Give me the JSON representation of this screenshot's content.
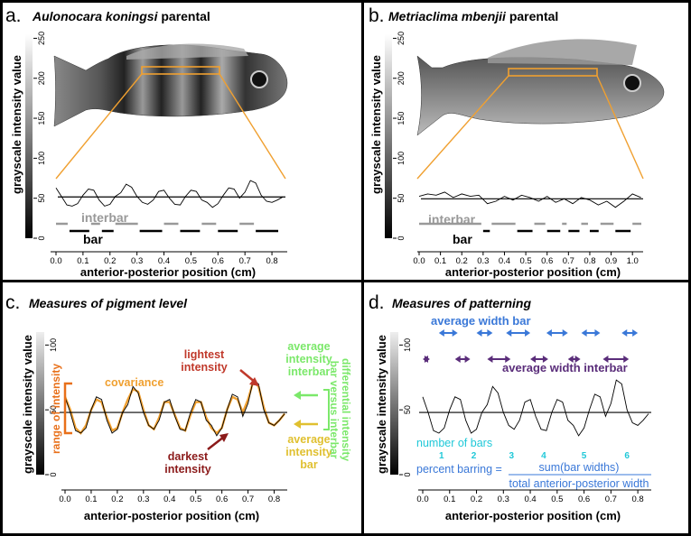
{
  "colors": {
    "orange": "#f0a030",
    "red": "#c0392b",
    "darkred": "#8b1a1a",
    "green": "#7be86a",
    "yellow": "#e0c030",
    "cyan": "#20c8d8",
    "blue": "#3a78d8",
    "purple": "#5a2d7a",
    "gray": "#999999",
    "black": "#000000"
  },
  "panels": {
    "a": {
      "letter": "a.",
      "title_italic": "Aulonocara koningsi",
      "title_rest": " parental",
      "ylabel": "grayscale intensity value",
      "xlabel": "anterior-posterior position (cm)",
      "yticks": [
        "0",
        "50",
        "100",
        "150",
        "200",
        "250"
      ],
      "xticks": [
        "0.0",
        "0.1",
        "0.2",
        "0.3",
        "0.4",
        "0.5",
        "0.6",
        "0.7",
        "0.8"
      ],
      "label_interbar": "interbar",
      "label_bar": "bar"
    },
    "b": {
      "letter": "b.",
      "title_italic": "Metriaclima mbenjii",
      "title_rest": " parental",
      "ylabel": "grayscale intensity value",
      "xlabel": "anterior-posterior position (cm)",
      "yticks": [
        "0",
        "50",
        "100",
        "150",
        "200",
        "250"
      ],
      "xticks": [
        "0.0",
        "0.1",
        "0.2",
        "0.3",
        "0.4",
        "0.5",
        "0.6",
        "0.7",
        "0.8",
        "0.9",
        "1.0"
      ],
      "label_interbar": "interbar",
      "label_bar": "bar"
    },
    "c": {
      "letter": "c.",
      "title": "Measures of pigment level",
      "ylabel": "grayscale intensity value",
      "xlabel": "anterior-posterior position (cm)",
      "yticks": [
        "0",
        "50",
        "100"
      ],
      "xticks": [
        "0.0",
        "0.1",
        "0.2",
        "0.3",
        "0.4",
        "0.5",
        "0.6",
        "0.7",
        "0.8"
      ],
      "range_label": "range of intensity",
      "covariance": "covariance",
      "lightest": [
        "lightest",
        "intensity"
      ],
      "darkest": [
        "darkest",
        "intensity"
      ],
      "avg_interbar": [
        "average",
        "intensity",
        "interbar"
      ],
      "avg_bar": [
        "average",
        "intensity",
        "bar"
      ],
      "differential": [
        "differential intensity",
        "bar versus interbar"
      ]
    },
    "d": {
      "letter": "d.",
      "title": "Measures of patterning",
      "ylabel": "grayscale intensity value",
      "xlabel": "anterior-posterior position (cm)",
      "yticks": [
        "0",
        "50",
        "100"
      ],
      "xticks": [
        "0.0",
        "0.1",
        "0.2",
        "0.3",
        "0.4",
        "0.5",
        "0.6",
        "0.7",
        "0.8"
      ],
      "avg_width_bar": "average width bar",
      "avg_width_interbar": "average width interbar",
      "number_of_bars": "number of bars",
      "bar_numbers": [
        "1",
        "2",
        "3",
        "4",
        "5",
        "6"
      ],
      "percent_barring": "percent barring =",
      "numerator": "sum(bar widths)",
      "denominator": "total anterior-posterior width"
    }
  },
  "chart_data": [
    {
      "type": "line",
      "panel": "a",
      "ylim": [
        0,
        255
      ],
      "xlim": [
        0,
        0.85
      ],
      "mean_intensity": 47,
      "x": [
        0.0,
        0.02,
        0.04,
        0.06,
        0.08,
        0.1,
        0.12,
        0.14,
        0.16,
        0.18,
        0.2,
        0.22,
        0.24,
        0.26,
        0.28,
        0.3,
        0.32,
        0.34,
        0.36,
        0.38,
        0.4,
        0.42,
        0.44,
        0.46,
        0.48,
        0.5,
        0.52,
        0.54,
        0.56,
        0.58,
        0.6,
        0.62,
        0.64,
        0.66,
        0.68,
        0.7,
        0.72,
        0.74,
        0.76,
        0.78,
        0.8,
        0.82,
        0.84
      ],
      "y": [
        62,
        48,
        34,
        32,
        36,
        50,
        60,
        58,
        42,
        32,
        35,
        48,
        54,
        68,
        63,
        48,
        38,
        35,
        42,
        56,
        58,
        45,
        35,
        34,
        48,
        58,
        56,
        42,
        38,
        30,
        36,
        50,
        62,
        60,
        45,
        55,
        74,
        70,
        50,
        40,
        38,
        42,
        47
      ],
      "bars": [
        [
          0.05,
          0.13
        ],
        [
          0.17,
          0.22
        ],
        [
          0.31,
          0.4
        ],
        [
          0.46,
          0.54
        ],
        [
          0.6,
          0.68
        ],
        [
          0.74,
          0.83
        ]
      ],
      "interbars": [
        [
          0.0,
          0.05
        ],
        [
          0.13,
          0.17
        ],
        [
          0.22,
          0.31
        ],
        [
          0.4,
          0.46
        ],
        [
          0.54,
          0.6
        ],
        [
          0.68,
          0.74
        ]
      ]
    },
    {
      "type": "line",
      "panel": "b",
      "ylim": [
        0,
        255
      ],
      "xlim": [
        0,
        1.05
      ],
      "mean_intensity": 44,
      "x": [
        0.0,
        0.04,
        0.08,
        0.12,
        0.16,
        0.2,
        0.24,
        0.28,
        0.32,
        0.36,
        0.4,
        0.44,
        0.48,
        0.52,
        0.56,
        0.6,
        0.64,
        0.68,
        0.72,
        0.76,
        0.8,
        0.84,
        0.88,
        0.92,
        0.96,
        1.0,
        1.04
      ],
      "y": [
        48,
        52,
        50,
        55,
        46,
        52,
        48,
        50,
        36,
        40,
        48,
        42,
        50,
        46,
        40,
        48,
        38,
        44,
        36,
        46,
        42,
        34,
        40,
        30,
        40,
        52,
        46
      ],
      "bars": [
        [
          0.3,
          0.34
        ],
        [
          0.46,
          0.54
        ],
        [
          0.6,
          0.67
        ],
        [
          0.7,
          0.76
        ],
        [
          0.8,
          0.85
        ],
        [
          0.92,
          1.0
        ]
      ],
      "interbars": [
        [
          0.0,
          0.3
        ],
        [
          0.34,
          0.46
        ],
        [
          0.54,
          0.6
        ],
        [
          0.67,
          0.7
        ],
        [
          0.76,
          0.8
        ],
        [
          0.85,
          0.92
        ],
        [
          1.0,
          1.05
        ]
      ]
    },
    {
      "type": "line",
      "panel": "c",
      "ylim": [
        0,
        110
      ],
      "xlim": [
        0,
        0.85
      ],
      "mean_intensity": 48,
      "x": [
        0.0,
        0.02,
        0.04,
        0.06,
        0.08,
        0.1,
        0.12,
        0.14,
        0.16,
        0.18,
        0.2,
        0.22,
        0.24,
        0.26,
        0.28,
        0.3,
        0.32,
        0.34,
        0.36,
        0.38,
        0.4,
        0.42,
        0.44,
        0.46,
        0.48,
        0.5,
        0.52,
        0.54,
        0.56,
        0.58,
        0.6,
        0.62,
        0.64,
        0.66,
        0.68,
        0.7,
        0.72,
        0.74,
        0.76,
        0.78,
        0.8,
        0.82,
        0.84
      ],
      "y": [
        60,
        48,
        34,
        32,
        36,
        50,
        60,
        58,
        42,
        32,
        35,
        48,
        54,
        68,
        63,
        48,
        38,
        35,
        42,
        56,
        58,
        45,
        35,
        34,
        48,
        58,
        56,
        42,
        38,
        30,
        36,
        50,
        62,
        60,
        45,
        55,
        73,
        70,
        50,
        40,
        38,
        42,
        47
      ],
      "smoothed": [
        60,
        50,
        36,
        32,
        38,
        50,
        58,
        56,
        44,
        34,
        36,
        48,
        58,
        66,
        64,
        50,
        38,
        35,
        44,
        56,
        56,
        46,
        36,
        34,
        46,
        56,
        56,
        44,
        36,
        32,
        36,
        50,
        60,
        58,
        48,
        58,
        72,
        68,
        52,
        40,
        38,
        42,
        47
      ],
      "annotations": {
        "lightest_x": 0.72,
        "darkest_x": 0.59
      }
    },
    {
      "type": "line",
      "panel": "d",
      "ylim": [
        0,
        110
      ],
      "xlim": [
        0,
        0.85
      ],
      "mean_intensity": 48,
      "x": [
        0.0,
        0.02,
        0.04,
        0.06,
        0.08,
        0.1,
        0.12,
        0.14,
        0.16,
        0.18,
        0.2,
        0.22,
        0.24,
        0.26,
        0.28,
        0.3,
        0.32,
        0.34,
        0.36,
        0.38,
        0.4,
        0.42,
        0.44,
        0.46,
        0.48,
        0.5,
        0.52,
        0.54,
        0.56,
        0.58,
        0.6,
        0.62,
        0.64,
        0.66,
        0.68,
        0.7,
        0.72,
        0.74,
        0.76,
        0.78,
        0.8,
        0.82,
        0.84
      ],
      "y": [
        60,
        48,
        34,
        32,
        36,
        50,
        60,
        58,
        42,
        32,
        35,
        48,
        54,
        68,
        63,
        48,
        38,
        35,
        42,
        56,
        58,
        45,
        35,
        34,
        48,
        58,
        56,
        42,
        38,
        30,
        36,
        50,
        62,
        60,
        45,
        55,
        73,
        70,
        50,
        40,
        38,
        42,
        47
      ],
      "bar_width_arrows": [
        [
          0.06,
          0.13
        ],
        [
          0.2,
          0.26
        ],
        [
          0.31,
          0.4
        ],
        [
          0.46,
          0.54
        ],
        [
          0.59,
          0.66
        ],
        [
          0.74,
          0.8
        ]
      ],
      "interbar_width_arrows": [
        [
          0.0,
          0.02
        ],
        [
          0.12,
          0.17
        ],
        [
          0.24,
          0.32
        ],
        [
          0.4,
          0.46
        ],
        [
          0.54,
          0.58
        ],
        [
          0.67,
          0.76
        ]
      ],
      "bar_number_x": [
        0.07,
        0.19,
        0.33,
        0.45,
        0.6,
        0.76
      ]
    }
  ]
}
